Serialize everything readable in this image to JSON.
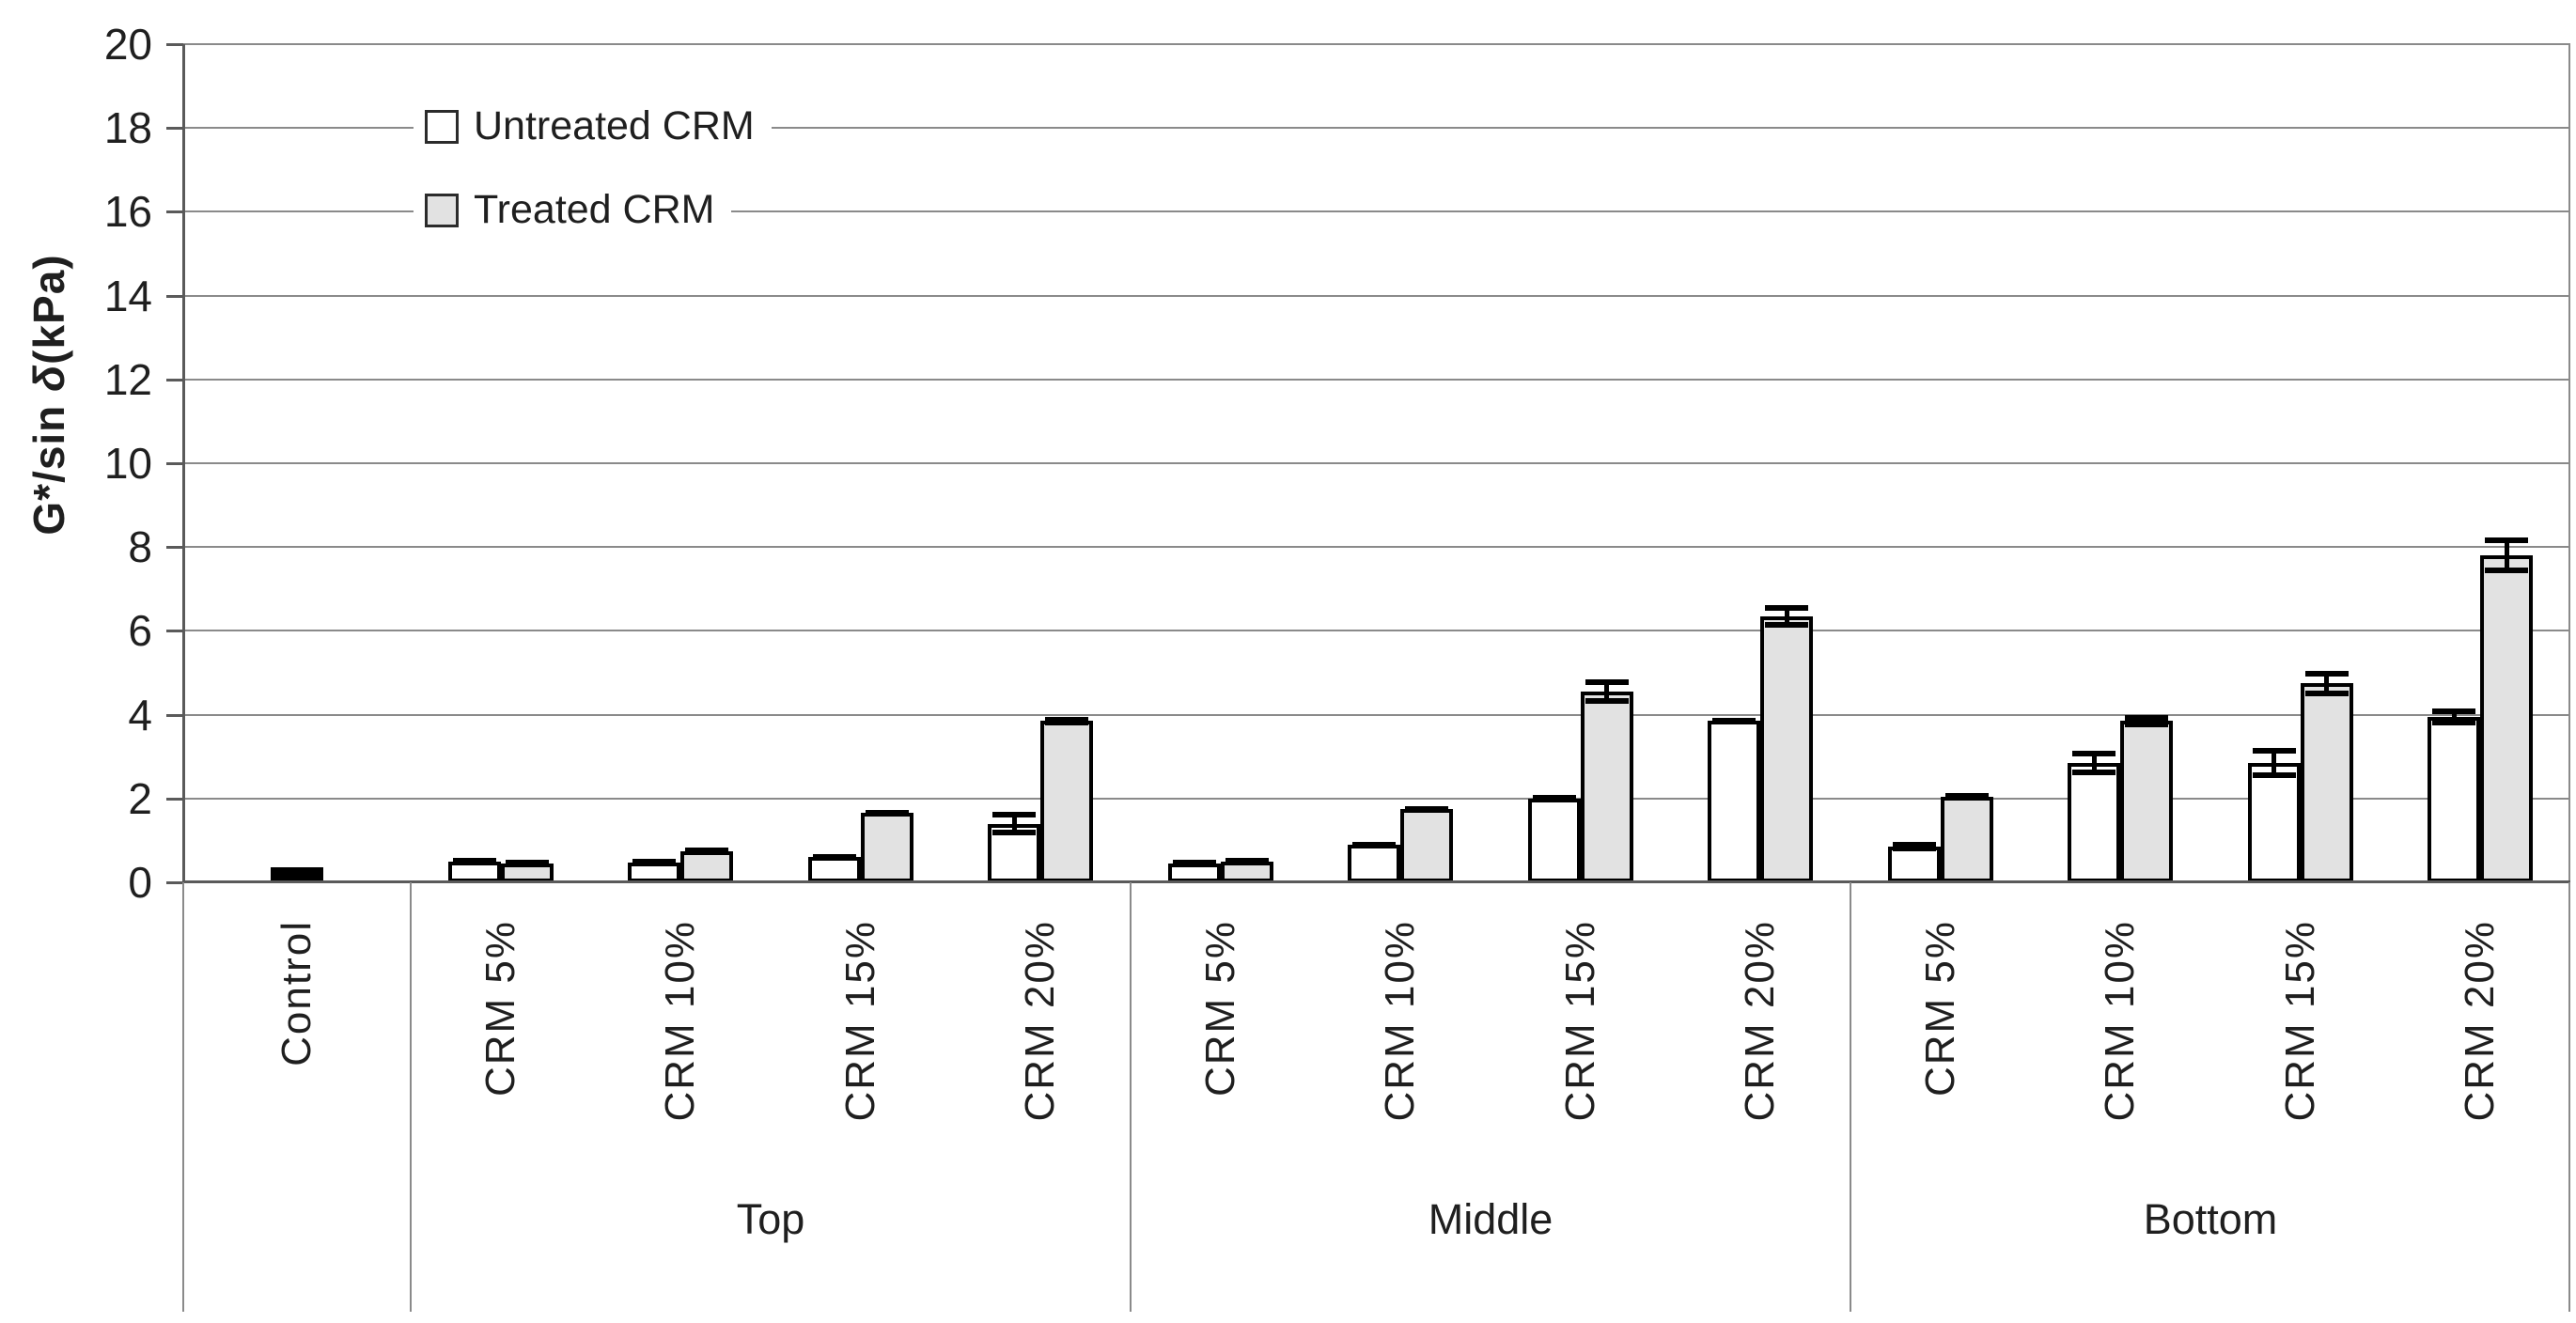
{
  "figure": {
    "y_axis": {
      "title_prefix": "G*/sin ",
      "title_delta": "δ",
      "title_suffix": "(kPa)",
      "min": 0,
      "max": 20,
      "step": 2
    }
  },
  "chart_data": {
    "type": "bar",
    "title": "",
    "xlabel": "",
    "ylabel": "G*/sin δ(kPa)",
    "ylim": [
      0,
      20
    ],
    "ytick_step": 2,
    "grid": true,
    "legend_position": "inside-top-left",
    "legend": [
      {
        "label": "Untreated CRM",
        "fill": "#ffffff"
      },
      {
        "label": "Treated CRM",
        "fill": "#e2e2e2"
      }
    ],
    "control": {
      "label": "Control",
      "value": 0.35,
      "error": 0.0,
      "fill": "#000000"
    },
    "groups": [
      {
        "label": "Top",
        "categories": [
          "CRM 5%",
          "CRM 10%",
          "CRM 15%",
          "CRM 20%"
        ],
        "series": [
          {
            "name": "Untreated CRM",
            "fill": "#ffffff",
            "values": [
              0.5,
              0.48,
              0.6,
              1.4
            ],
            "errors": [
              0.05,
              0.05,
              0.06,
              0.28
            ]
          },
          {
            "name": "Treated CRM",
            "fill": "#e2e2e2",
            "values": [
              0.45,
              0.75,
              1.65,
              3.85
            ],
            "errors": [
              0.04,
              0.05,
              0.06,
              0.1
            ]
          }
        ]
      },
      {
        "label": "Middle",
        "categories": [
          "CRM 5%",
          "CRM 10%",
          "CRM 15%",
          "CRM 20%"
        ],
        "series": [
          {
            "name": "Untreated CRM",
            "fill": "#ffffff",
            "values": [
              0.45,
              0.9,
              2.0,
              3.85
            ],
            "errors": [
              0.04,
              0.06,
              0.08,
              0.08
            ]
          },
          {
            "name": "Treated CRM",
            "fill": "#e2e2e2",
            "values": [
              0.5,
              1.75,
              4.55,
              6.35
            ],
            "errors": [
              0.05,
              0.06,
              0.3,
              0.27
            ]
          }
        ]
      },
      {
        "label": "Bottom",
        "categories": [
          "CRM 5%",
          "CRM 10%",
          "CRM 15%",
          "CRM 20%"
        ],
        "series": [
          {
            "name": "Untreated CRM",
            "fill": "#ffffff",
            "values": [
              0.85,
              2.85,
              2.85,
              3.95
            ],
            "errors": [
              0.12,
              0.3,
              0.35,
              0.2
            ]
          },
          {
            "name": "Treated CRM",
            "fill": "#e2e2e2",
            "values": [
              2.05,
              3.85,
              4.75,
              7.8
            ],
            "errors": [
              0.07,
              0.15,
              0.3,
              0.42
            ]
          }
        ]
      }
    ]
  },
  "colors": {
    "grid": "#8a8a8a",
    "axis": "#5a5a5a",
    "bar_border": "#000000",
    "error_bar": "#000000",
    "text": "#1f1f1f",
    "background": "#ffffff"
  }
}
